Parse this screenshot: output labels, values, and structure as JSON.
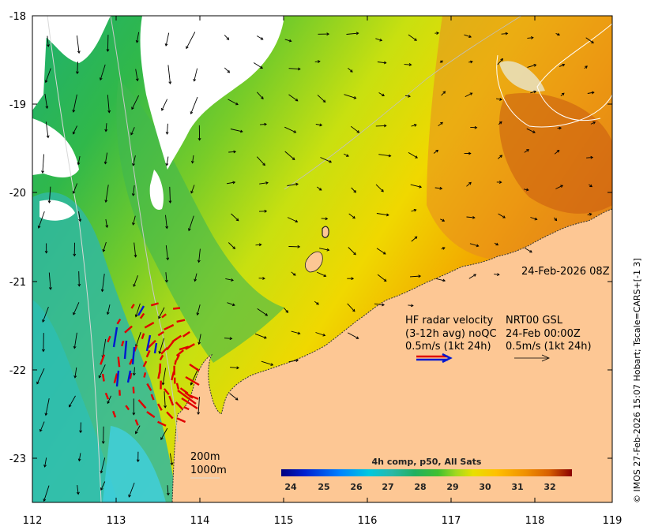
{
  "axes": {
    "x_ticks": [
      "112",
      "113",
      "114",
      "115",
      "116",
      "117",
      "118",
      "119"
    ],
    "y_ticks": [
      "-18",
      "-19",
      "-20",
      "-21",
      "-22",
      "-23"
    ]
  },
  "timestamp": "24-Feb-2026 08Z",
  "legend": {
    "hf_line1_a": "HF radar velocity",
    "hf_line1_b": "NRT00 GSL",
    "hf_line2_a": "(3-12h avg) noQC",
    "hf_line2_b": "24-Feb 00:00Z",
    "hf_line3_a": "0.5m/s (1kt 24h)",
    "hf_line3_b": "0.5m/s (1kt 24h)"
  },
  "isobaths": {
    "line1": "200m",
    "line2": "1000m"
  },
  "colorbar": {
    "title": "4h comp, p50, All Sats",
    "labels": [
      "24",
      "25",
      "26",
      "27",
      "28",
      "29",
      "30",
      "31",
      "32"
    ],
    "colors": [
      "#00007f",
      "#0020d0",
      "#0080ff",
      "#00c8e0",
      "#2ab8a8",
      "#22b060",
      "#40c030",
      "#a0d820",
      "#e8e000",
      "#ffc000",
      "#f09000",
      "#d86000",
      "#b03000",
      "#8b0000"
    ]
  },
  "credit": "© IMOS 27-Feb-2026 15:07 Hobart; Tscale=CARS+[-1 3]"
}
